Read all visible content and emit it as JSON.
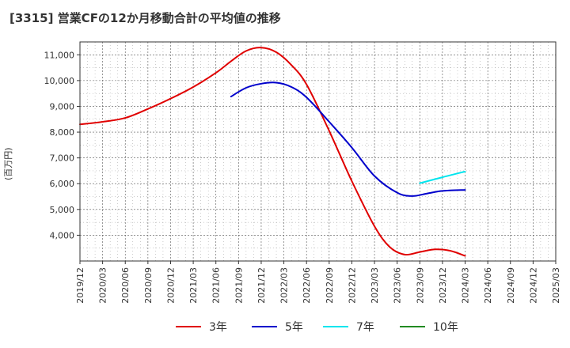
{
  "chart_data": {
    "type": "line",
    "title": "[3315]  営業CFの12か月移動合計の平均値の推移",
    "ylabel": "(百万円)",
    "xlabel": "",
    "ylim": [
      3000,
      11500
    ],
    "yticks": [
      4000,
      5000,
      6000,
      7000,
      8000,
      9000,
      10000,
      11000
    ],
    "ytick_labels": [
      "4,000",
      "5,000",
      "6,000",
      "7,000",
      "8,000",
      "9,000",
      "10,000",
      "11,000"
    ],
    "x_ticks": [
      "2019/12",
      "2020/03",
      "2020/06",
      "2020/09",
      "2020/12",
      "2021/03",
      "2021/06",
      "2021/09",
      "2021/12",
      "2022/03",
      "2022/06",
      "2022/09",
      "2022/12",
      "2023/03",
      "2023/06",
      "2023/09",
      "2023/12",
      "2024/03",
      "2024/06",
      "2024/09",
      "2024/12",
      "2025/03"
    ],
    "grid": true,
    "legend_position": "bottom",
    "series": [
      {
        "name": "3年",
        "color": "#e00000",
        "x": [
          "2019/12",
          "2020/03",
          "2020/06",
          "2020/09",
          "2020/12",
          "2021/03",
          "2021/06",
          "2021/08",
          "2021/10",
          "2021/12",
          "2022/02",
          "2022/04",
          "2022/06",
          "2022/09",
          "2022/12",
          "2023/03",
          "2023/05",
          "2023/07",
          "2023/09",
          "2023/11",
          "2024/01",
          "2024/03"
        ],
        "values": [
          8300,
          8400,
          8550,
          8900,
          9300,
          9750,
          10300,
          10750,
          11150,
          11280,
          11100,
          10600,
          9850,
          8050,
          6100,
          4350,
          3550,
          3250,
          3350,
          3450,
          3400,
          3200
        ]
      },
      {
        "name": "5年",
        "color": "#0000cc",
        "x": [
          "2021/08",
          "2021/10",
          "2021/12",
          "2022/02",
          "2022/04",
          "2022/06",
          "2022/09",
          "2022/12",
          "2023/03",
          "2023/06",
          "2023/08",
          "2023/10",
          "2023/12",
          "2024/03"
        ],
        "values": [
          9380,
          9720,
          9880,
          9920,
          9750,
          9350,
          8400,
          7400,
          6300,
          5650,
          5520,
          5620,
          5720,
          5760
        ]
      },
      {
        "name": "7年",
        "color": "#00e5ee",
        "x": [
          "2023/09",
          "2023/12",
          "2024/03"
        ],
        "values": [
          6020,
          6250,
          6470
        ]
      },
      {
        "name": "10年",
        "color": "#228b22",
        "x": [],
        "values": []
      }
    ]
  }
}
